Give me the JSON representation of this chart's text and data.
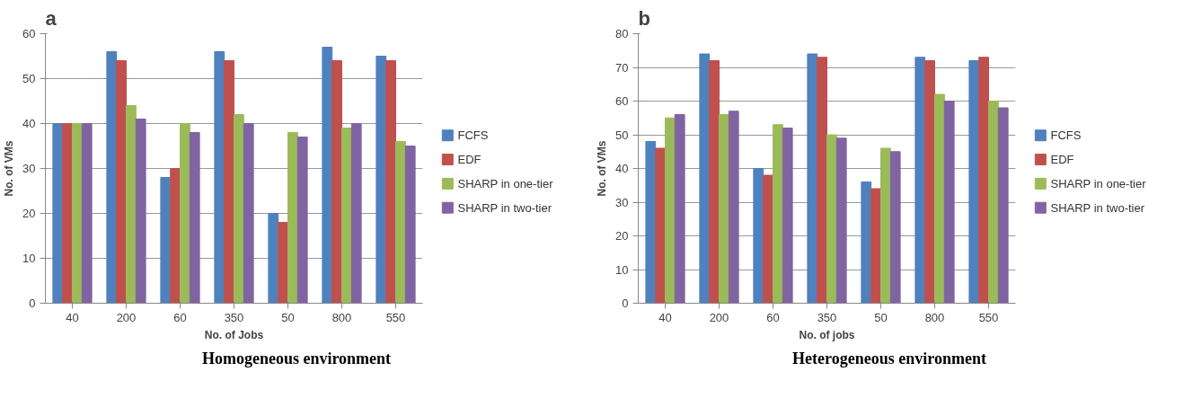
{
  "chart_data": [
    {
      "type": "bar",
      "title": "a",
      "xlabel": "No. of Jobs",
      "ylabel": "No. of VMs",
      "categories": [
        "40",
        "200",
        "60",
        "350",
        "50",
        "800",
        "550"
      ],
      "ylim": [
        0,
        60
      ],
      "yticks": [
        0,
        10,
        20,
        30,
        40,
        50,
        60
      ],
      "grid": "y",
      "legend": "right",
      "annotations": [
        "Homogeneous environment"
      ],
      "series": [
        {
          "name": "FCFS",
          "color": "#4f81bd",
          "values": [
            40,
            56,
            28,
            56,
            20,
            57,
            55
          ]
        },
        {
          "name": "EDF",
          "color": "#c0504d",
          "values": [
            40,
            54,
            30,
            54,
            18,
            54,
            54
          ]
        },
        {
          "name": "SHARP in one-tier",
          "color": "#9bbb59",
          "values": [
            40,
            44,
            40,
            42,
            38,
            39,
            36
          ]
        },
        {
          "name": "SHARP in two-tier",
          "color": "#8064a2",
          "values": [
            40,
            41,
            38,
            40,
            37,
            40,
            35
          ]
        }
      ]
    },
    {
      "type": "bar",
      "title": "b",
      "xlabel": "No. of jobs",
      "ylabel": "No. of VMs",
      "categories": [
        "40",
        "200",
        "60",
        "350",
        "50",
        "800",
        "550"
      ],
      "ylim": [
        0,
        80
      ],
      "yticks": [
        0,
        10,
        20,
        30,
        40,
        50,
        60,
        70,
        80
      ],
      "grid": "y",
      "legend": "right",
      "annotations": [
        "Heterogeneous environment"
      ],
      "series": [
        {
          "name": "FCFS",
          "color": "#4f81bd",
          "values": [
            48,
            74,
            40,
            74,
            36,
            73,
            72
          ]
        },
        {
          "name": "EDF",
          "color": "#c0504d",
          "values": [
            46,
            72,
            38,
            73,
            34,
            72,
            73
          ]
        },
        {
          "name": "SHARP in one-tier",
          "color": "#9bbb59",
          "values": [
            55,
            56,
            53,
            50,
            46,
            62,
            60
          ]
        },
        {
          "name": "SHARP in two-tier",
          "color": "#8064a2",
          "values": [
            56,
            57,
            52,
            49,
            45,
            60,
            58
          ]
        }
      ]
    }
  ]
}
